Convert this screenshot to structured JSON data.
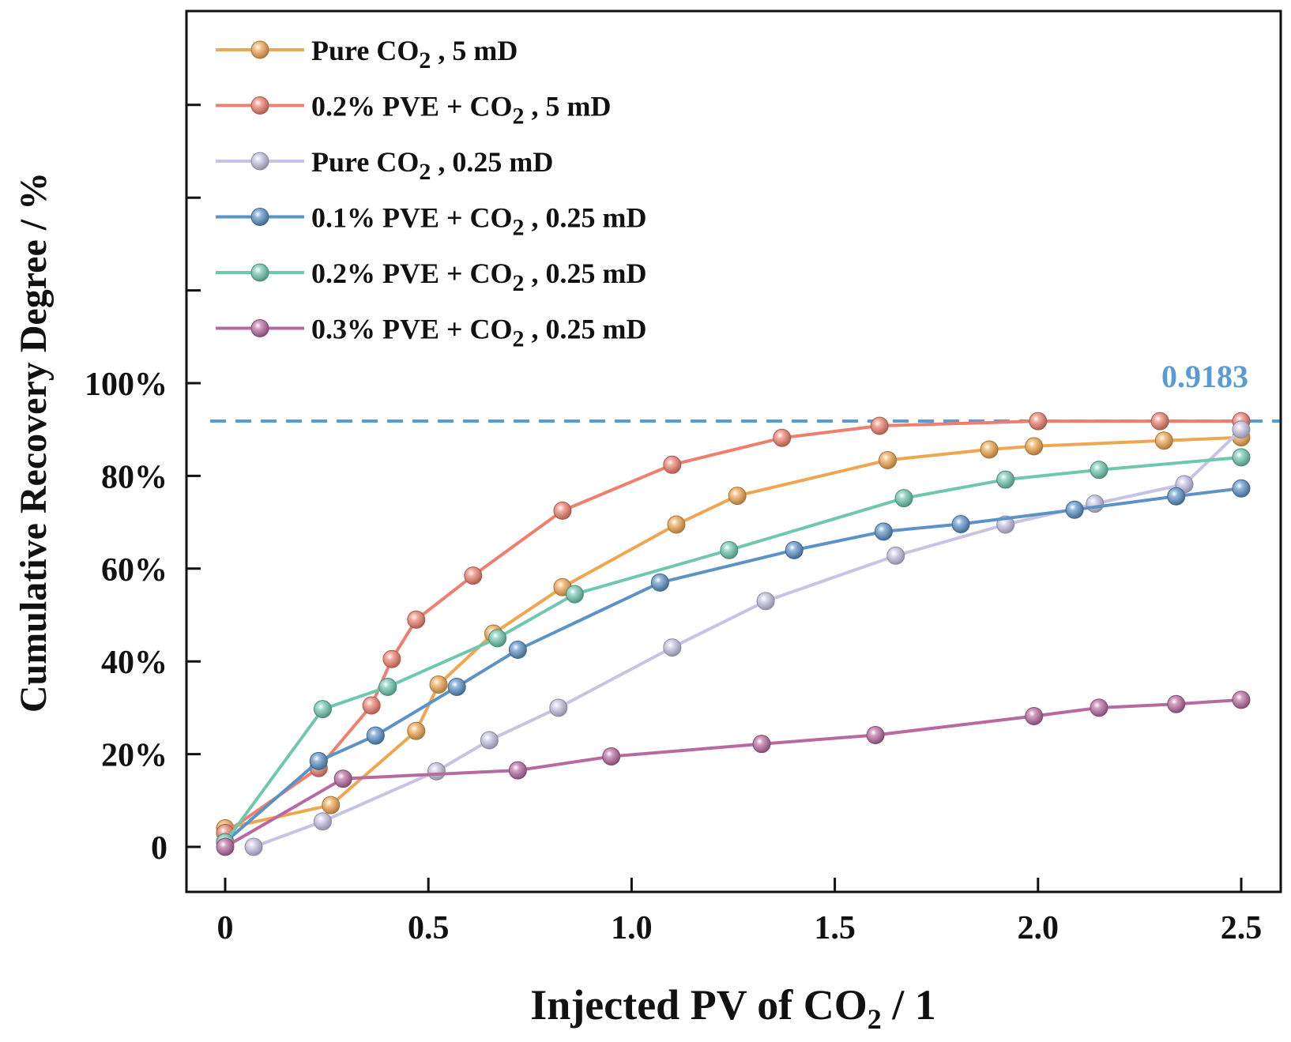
{
  "chart_data": {
    "type": "line",
    "xlabel": "Injected PV of CO",
    "xlabel_sub": "2",
    "xlabel_tail": " / 1",
    "ylabel": "Cumulative Recovery Degree / %",
    "xlim": [
      -0.1,
      2.6
    ],
    "ylim": [
      -0.1,
      1.8
    ],
    "x_ticks": [
      {
        "value": 0,
        "label": "0"
      },
      {
        "value": 0.5,
        "label": "0.5"
      },
      {
        "value": 1.0,
        "label": "1.0"
      },
      {
        "value": 1.5,
        "label": "1.5"
      },
      {
        "value": 2.0,
        "label": "2.0"
      },
      {
        "value": 2.5,
        "label": "2.5"
      }
    ],
    "y_ticks": [
      {
        "value": 0,
        "label": "0"
      },
      {
        "value": 0.2,
        "label": "20%"
      },
      {
        "value": 0.4,
        "label": "40%"
      },
      {
        "value": 0.6,
        "label": "60%"
      },
      {
        "value": 0.8,
        "label": "80%"
      },
      {
        "value": 1.0,
        "label": "100%"
      },
      {
        "value": 1.2,
        "label": ""
      },
      {
        "value": 1.4,
        "label": ""
      },
      {
        "value": 1.6,
        "label": ""
      }
    ],
    "reference_line": {
      "value": 0.9183,
      "label": "0.9183",
      "color": "#5b9bd5"
    },
    "series": [
      {
        "name": "Pure CO2, 5 mD",
        "legend": {
          "pre": "Pure CO",
          "sub": "2",
          "post": " , 5 mD"
        },
        "color": "#f0a54f",
        "x": [
          0,
          0.26,
          0.47,
          0.525,
          0.66,
          0.83,
          1.11,
          1.26,
          1.63,
          1.88,
          1.99,
          2.31,
          2.5
        ],
        "y": [
          0.04,
          0.09,
          0.25,
          0.35,
          0.46,
          0.56,
          0.695,
          0.757,
          0.834,
          0.857,
          0.864,
          0.876,
          0.883
        ]
      },
      {
        "name": "0.2% PVE + CO2, 5 mD",
        "legend": {
          "pre": "0.2% PVE + CO",
          "sub": "2",
          "post": " , 5 mD"
        },
        "color": "#ef7f6c",
        "x": [
          0,
          0.23,
          0.36,
          0.41,
          0.47,
          0.61,
          0.83,
          1.1,
          1.37,
          1.61,
          2.0,
          2.3,
          2.5
        ],
        "y": [
          0.03,
          0.17,
          0.305,
          0.405,
          0.49,
          0.585,
          0.725,
          0.824,
          0.882,
          0.908,
          0.918,
          0.918,
          0.918
        ]
      },
      {
        "name": "Pure CO2, 0.25 mD",
        "legend": {
          "pre": "Pure CO",
          "sub": "2",
          "post": " , 0.25 mD"
        },
        "color": "#c6c3e4",
        "x": [
          0.07,
          0.24,
          0.52,
          0.65,
          0.82,
          1.1,
          1.33,
          1.65,
          1.92,
          2.14,
          2.36,
          2.5
        ],
        "y": [
          0.0,
          0.055,
          0.163,
          0.23,
          0.3,
          0.43,
          0.53,
          0.628,
          0.695,
          0.74,
          0.782,
          0.9
        ]
      },
      {
        "name": "0.1% PVE + CO2, 0.25 mD",
        "legend": {
          "pre": "0.1% PVE + CO",
          "sub": "2",
          "post": " , 0.25 mD"
        },
        "color": "#5b92c7",
        "x": [
          0,
          0.23,
          0.37,
          0.57,
          0.72,
          1.07,
          1.4,
          1.62,
          1.81,
          2.09,
          2.34,
          2.5
        ],
        "y": [
          0.01,
          0.185,
          0.24,
          0.345,
          0.425,
          0.57,
          0.64,
          0.68,
          0.696,
          0.727,
          0.756,
          0.773
        ]
      },
      {
        "name": "0.2% PVE + CO2, 0.25 mD",
        "legend": {
          "pre": "0.2% PVE + CO",
          "sub": "2",
          "post": " , 0.25 mD"
        },
        "color": "#6fc7b0",
        "x": [
          0,
          0.24,
          0.4,
          0.67,
          0.86,
          1.24,
          1.67,
          1.92,
          2.15,
          2.5
        ],
        "y": [
          0.01,
          0.297,
          0.345,
          0.45,
          0.545,
          0.64,
          0.752,
          0.792,
          0.813,
          0.84
        ]
      },
      {
        "name": "0.3% PVE + CO2, 0.25 mD",
        "legend": {
          "pre": "0.3% PVE + CO",
          "sub": "2",
          "post": " , 0.25 mD"
        },
        "color": "#b86aa0",
        "x": [
          0,
          0.29,
          0.72,
          0.95,
          1.32,
          1.6,
          1.99,
          2.15,
          2.34,
          2.5
        ],
        "y": [
          0.0,
          0.147,
          0.165,
          0.195,
          0.222,
          0.241,
          0.282,
          0.3,
          0.308,
          0.317
        ]
      }
    ]
  }
}
